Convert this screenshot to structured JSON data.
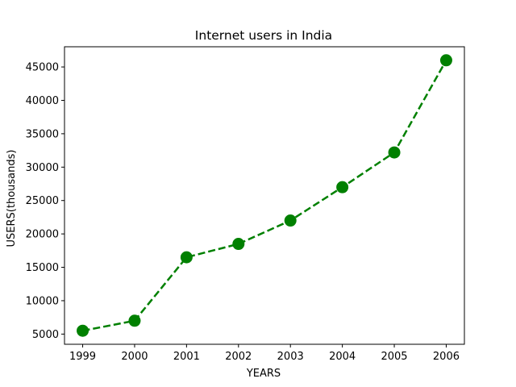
{
  "chart_data": {
    "type": "line",
    "title": "Internet users in India",
    "xlabel": "YEARS",
    "ylabel": "USERS(thousands)",
    "x": [
      "1999",
      "2000",
      "2001",
      "2002",
      "2003",
      "2004",
      "2005",
      "2006"
    ],
    "series": [
      {
        "values": [
          5500,
          7000,
          16500,
          18500,
          22000,
          27000,
          32200,
          46000
        ],
        "color": "#008000",
        "line_style": "dashed",
        "marker": "circle"
      }
    ],
    "yticks": [
      5000,
      10000,
      15000,
      20000,
      25000,
      30000,
      35000,
      40000,
      45000
    ],
    "ylim": [
      3475,
      48025
    ],
    "grid": false,
    "legend": "none"
  }
}
